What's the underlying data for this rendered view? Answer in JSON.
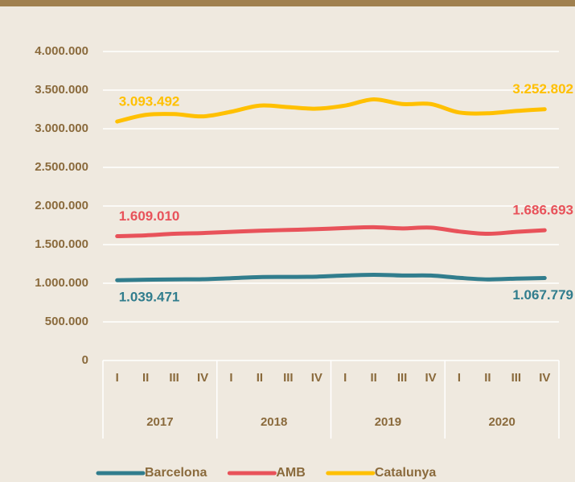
{
  "chart_data": {
    "type": "line",
    "categories": [
      "I",
      "II",
      "III",
      "IV",
      "I",
      "II",
      "III",
      "IV",
      "I",
      "II",
      "III",
      "IV",
      "I",
      "II",
      "III",
      "IV"
    ],
    "groups": [
      "2017",
      "2018",
      "2019",
      "2020"
    ],
    "series": [
      {
        "name": "Barcelona",
        "color": "#317d8d",
        "values": [
          1039471,
          1045000,
          1050000,
          1052000,
          1065000,
          1080000,
          1082000,
          1085000,
          1100000,
          1110000,
          1100000,
          1100000,
          1070000,
          1050000,
          1060000,
          1067779
        ],
        "value_labels": [
          "1.039.471",
          null,
          null,
          null,
          null,
          null,
          null,
          null,
          null,
          null,
          null,
          null,
          null,
          null,
          null,
          "1.067.779"
        ]
      },
      {
        "name": "AMB",
        "color": "#e8525a",
        "values": [
          1609010,
          1620000,
          1640000,
          1650000,
          1665000,
          1680000,
          1690000,
          1700000,
          1715000,
          1725000,
          1710000,
          1720000,
          1670000,
          1640000,
          1665000,
          1686693
        ],
        "value_labels": [
          "1.609.010",
          null,
          null,
          null,
          null,
          null,
          null,
          null,
          null,
          null,
          null,
          null,
          null,
          null,
          null,
          "1.686.693"
        ]
      },
      {
        "name": "Catalunya",
        "color": "#ffc000",
        "values": [
          3093492,
          3180000,
          3190000,
          3160000,
          3220000,
          3300000,
          3280000,
          3260000,
          3300000,
          3380000,
          3320000,
          3320000,
          3210000,
          3200000,
          3230000,
          3252802
        ],
        "value_labels": [
          "3.093.492",
          null,
          null,
          null,
          null,
          null,
          null,
          null,
          null,
          null,
          null,
          null,
          null,
          null,
          null,
          "3.252.802"
        ]
      }
    ],
    "ylim": [
      0,
      4000000
    ],
    "yticks": [
      0,
      {
        "value": 500000,
        "label": "500.000"
      },
      {
        "value": 1000000,
        "label": "1.000.000"
      },
      {
        "value": 1500000,
        "label": "1.500.000"
      },
      {
        "value": 2000000,
        "label": "2.000.000"
      },
      {
        "value": 2500000,
        "label": "2.500.000"
      },
      {
        "value": 3000000,
        "label": "3.000.000"
      },
      {
        "value": 3500000,
        "label": "3.500.000"
      },
      {
        "value": 4000000,
        "label": "4.000.000"
      }
    ],
    "grid": true,
    "legend": "bottom"
  }
}
